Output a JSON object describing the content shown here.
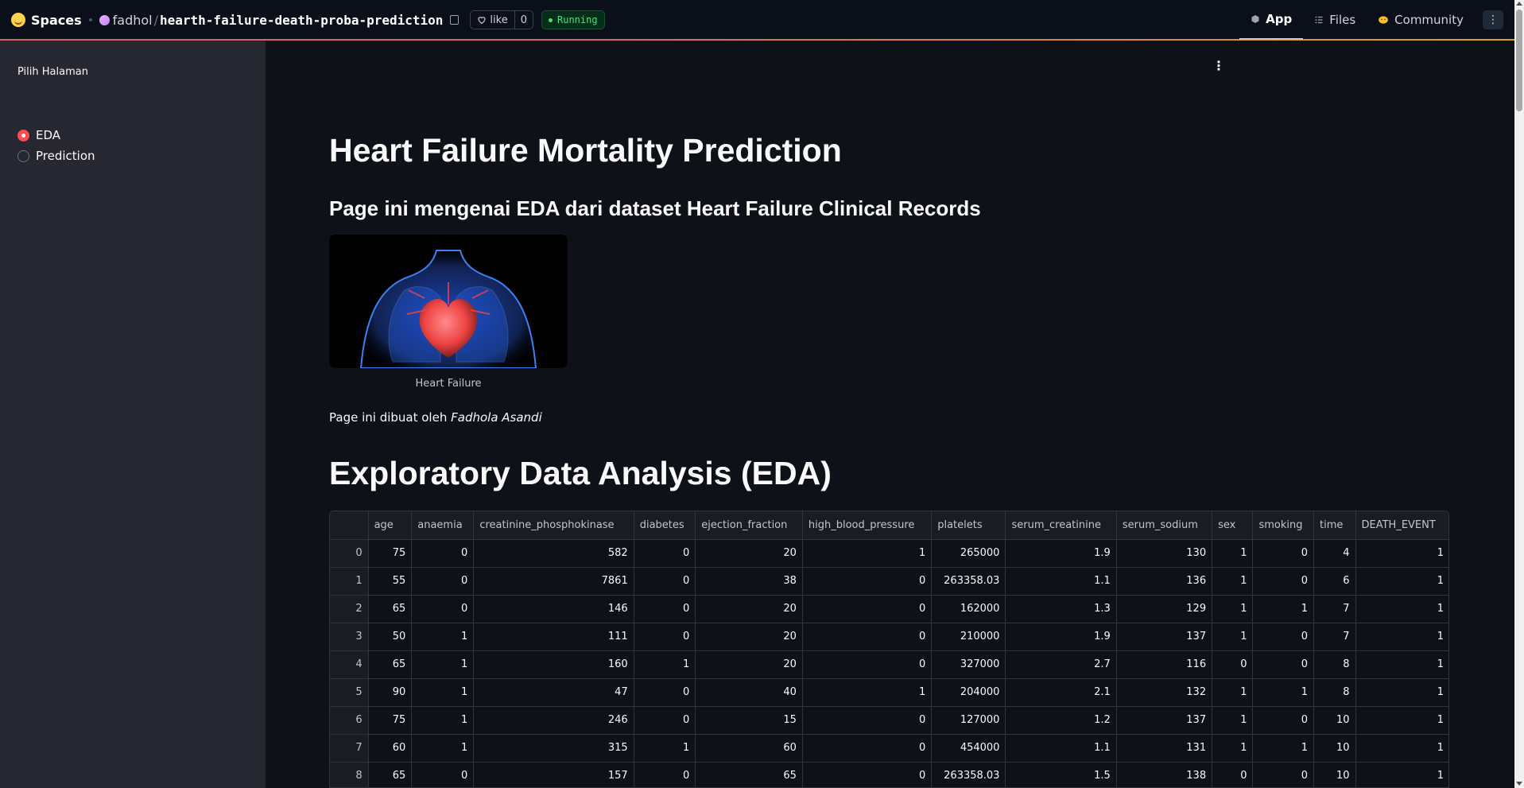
{
  "topbar": {
    "brand": "Spaces",
    "owner": "fadhol",
    "repo": "hearth-failure-death-proba-prediction",
    "like_label": "like",
    "like_count": "0",
    "status": "Running",
    "nav": {
      "app": "App",
      "files": "Files",
      "community": "Community"
    }
  },
  "sidebar": {
    "label": "Pilih Halaman",
    "options": [
      "EDA",
      "Prediction"
    ],
    "selected": "EDA"
  },
  "main": {
    "title": "Heart Failure Mortality Prediction",
    "subtitle": "Page ini mengenai EDA dari dataset Heart Failure Clinical Records",
    "image_caption": "Heart Failure",
    "by_prefix": "Page ini dibuat oleh",
    "by_name": "Fadhola Asandi",
    "eda_title": "Exploratory Data Analysis (EDA)"
  },
  "table": {
    "columns": [
      "",
      "age",
      "anaemia",
      "creatinine_phosphokinase",
      "diabetes",
      "ejection_fraction",
      "high_blood_pressure",
      "platelets",
      "serum_creatinine",
      "serum_sodium",
      "sex",
      "smoking",
      "time",
      "DEATH_EVENT"
    ],
    "rows": [
      [
        "0",
        "75",
        "0",
        "582",
        "0",
        "20",
        "1",
        "265000",
        "1.9",
        "130",
        "1",
        "0",
        "4",
        "1"
      ],
      [
        "1",
        "55",
        "0",
        "7861",
        "0",
        "38",
        "0",
        "263358.03",
        "1.1",
        "136",
        "1",
        "0",
        "6",
        "1"
      ],
      [
        "2",
        "65",
        "0",
        "146",
        "0",
        "20",
        "0",
        "162000",
        "1.3",
        "129",
        "1",
        "1",
        "7",
        "1"
      ],
      [
        "3",
        "50",
        "1",
        "111",
        "0",
        "20",
        "0",
        "210000",
        "1.9",
        "137",
        "1",
        "0",
        "7",
        "1"
      ],
      [
        "4",
        "65",
        "1",
        "160",
        "1",
        "20",
        "0",
        "327000",
        "2.7",
        "116",
        "0",
        "0",
        "8",
        "1"
      ],
      [
        "5",
        "90",
        "1",
        "47",
        "0",
        "40",
        "1",
        "204000",
        "2.1",
        "132",
        "1",
        "1",
        "8",
        "1"
      ],
      [
        "6",
        "75",
        "1",
        "246",
        "0",
        "15",
        "0",
        "127000",
        "1.2",
        "137",
        "1",
        "0",
        "10",
        "1"
      ],
      [
        "7",
        "60",
        "1",
        "315",
        "1",
        "60",
        "0",
        "454000",
        "1.1",
        "131",
        "1",
        "1",
        "10",
        "1"
      ],
      [
        "8",
        "65",
        "0",
        "157",
        "0",
        "65",
        "0",
        "263358.03",
        "1.5",
        "138",
        "0",
        "0",
        "10",
        "1"
      ]
    ]
  }
}
